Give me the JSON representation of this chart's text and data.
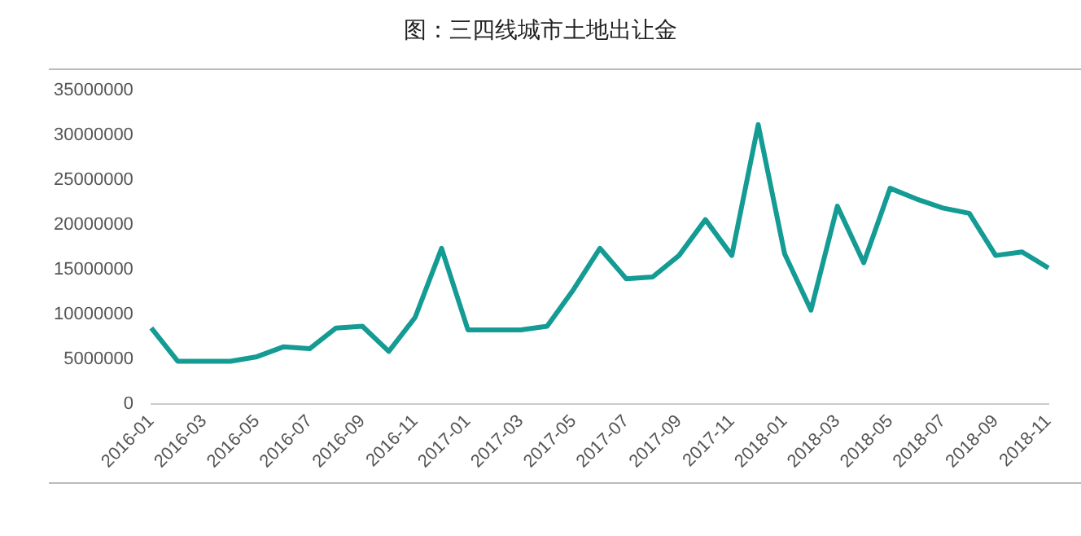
{
  "chart_data": {
    "type": "line",
    "title": "图：三四线城市土地出让金",
    "categories": [
      "2016-01",
      null,
      "2016-03",
      null,
      "2016-05",
      null,
      "2016-07",
      null,
      "2016-09",
      null,
      "2016-11",
      null,
      "2017-01",
      null,
      "2017-03",
      null,
      "2017-05",
      null,
      "2017-07",
      null,
      "2017-09",
      null,
      "2017-11",
      null,
      "2018-01",
      null,
      "2018-03",
      null,
      "2018-05",
      null,
      "2018-07",
      null,
      "2018-09",
      null,
      "2018-11"
    ],
    "series": [
      {
        "color": "#139b94",
        "values": [
          8500000,
          4800000,
          4800000,
          4800000,
          5300000,
          6400000,
          6200000,
          8500000,
          8700000,
          5900000,
          9700000,
          17400000,
          8300000,
          8300000,
          8300000,
          8700000,
          12800000,
          17400000,
          14000000,
          14200000,
          16600000,
          20600000,
          16600000,
          31200000,
          16800000,
          10500000,
          22100000,
          15800000,
          24100000,
          22900000,
          21900000,
          21300000,
          16600000,
          17000000,
          15200000
        ]
      }
    ],
    "ylim": [
      0,
      35000000
    ],
    "yticks": [
      0,
      5000000,
      10000000,
      15000000,
      20000000,
      25000000,
      30000000,
      35000000
    ],
    "grid": false,
    "legend": false,
    "marker": "none",
    "line_style": "solid"
  }
}
